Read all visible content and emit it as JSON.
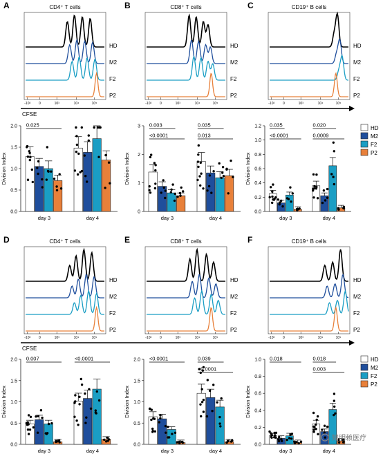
{
  "colors": {
    "HD": "#000000",
    "M2": "#1f4e9c",
    "F2": "#1a9ec4",
    "P2": "#e8803a",
    "hd_bar": "#ffffff",
    "bar_outline": "#222222",
    "line": "#222222"
  },
  "flow_axis": {
    "tick_labels": [
      "-10³",
      "0",
      "10³",
      "10⁴",
      "10⁵"
    ],
    "xlabel": "CFSE",
    "track_labels": [
      "HD",
      "M2",
      "F2",
      "P2"
    ]
  },
  "legend": {
    "entries": [
      "HD",
      "M2",
      "F2",
      "P2"
    ]
  },
  "watermark": "知明赖医疗",
  "chart_data": [
    {
      "id": "A",
      "panel_letter": "A",
      "type": "bar",
      "title": "CD4⁺ T cells",
      "ylabel": "Division Index",
      "yticks": [
        "0.0",
        "0.5",
        "1.0",
        "1.5",
        "2.0"
      ],
      "ylim": [
        0,
        2.0
      ],
      "categories": [
        "day 3",
        "day 4"
      ],
      "series": [
        {
          "name": "HD",
          "values": [
            1.28,
            1.48
          ]
        },
        {
          "name": "M2",
          "values": [
            1.05,
            1.38
          ]
        },
        {
          "name": "F2",
          "values": [
            1.0,
            1.7
          ]
        },
        {
          "name": "P2",
          "values": [
            0.72,
            1.2
          ]
        }
      ],
      "comparisons": [
        {
          "label": "0.025",
          "category": "day 3",
          "from": "HD",
          "to": "P2"
        }
      ]
    },
    {
      "id": "B",
      "panel_letter": "B",
      "type": "bar",
      "title": "CD8⁺ T cells",
      "ylabel": "Division Index",
      "yticks": [
        "0",
        "1",
        "2",
        "3"
      ],
      "ylim": [
        0,
        3
      ],
      "categories": [
        "day 3",
        "day 4"
      ],
      "series": [
        {
          "name": "HD",
          "values": [
            1.38,
            1.75
          ]
        },
        {
          "name": "M2",
          "values": [
            0.88,
            1.35
          ]
        },
        {
          "name": "F2",
          "values": [
            0.65,
            1.18
          ]
        },
        {
          "name": "P2",
          "values": [
            0.55,
            1.25
          ]
        }
      ],
      "comparisons": [
        {
          "label": "<0.0001",
          "category": "day 3",
          "from": "HD",
          "to": "P2"
        },
        {
          "label": "0.003",
          "category": "day 3",
          "from": "HD",
          "to": "F2"
        },
        {
          "label": "0.013",
          "category": "day 4",
          "from": "HD",
          "to": "P2"
        },
        {
          "label": "0.035",
          "category": "day 4",
          "from": "HD",
          "to": "F2"
        }
      ]
    },
    {
      "id": "C",
      "panel_letter": "C",
      "type": "bar",
      "title": "CD19⁺ B cells",
      "ylabel": "Division Index",
      "yticks": [
        "0.0",
        "0.2",
        "0.4",
        "0.6",
        "0.8",
        "1.0",
        "1.2"
      ],
      "ylim": [
        0,
        1.2
      ],
      "categories": [
        "day 3",
        "day 4"
      ],
      "series": [
        {
          "name": "HD",
          "values": [
            0.25,
            0.36
          ]
        },
        {
          "name": "M2",
          "values": [
            0.12,
            0.22
          ]
        },
        {
          "name": "F2",
          "values": [
            0.23,
            0.64
          ]
        },
        {
          "name": "P2",
          "values": [
            0.03,
            0.05
          ]
        }
      ],
      "comparisons": [
        {
          "label": "<0.0001",
          "category": "day 3",
          "from": "HD",
          "to": "P2"
        },
        {
          "label": "0.035",
          "category": "day 3",
          "from": "HD",
          "to": "M2"
        },
        {
          "label": "0.0009",
          "category": "day 4",
          "from": "HD",
          "to": "P2"
        },
        {
          "label": "0.020",
          "category": "day 4",
          "from": "HD",
          "to": "F2"
        }
      ]
    },
    {
      "id": "D",
      "panel_letter": "D",
      "type": "bar",
      "title": "CD4⁺ T cells",
      "ylabel": "Division Index",
      "yticks": [
        "0.0",
        "0.5",
        "1.0",
        "1.5",
        "2.0"
      ],
      "ylim": [
        0,
        2.0
      ],
      "categories": [
        "day 3",
        "day 4"
      ],
      "series": [
        {
          "name": "HD",
          "values": [
            0.48,
            1.02
          ]
        },
        {
          "name": "M2",
          "values": [
            0.58,
            1.08
          ]
        },
        {
          "name": "F2",
          "values": [
            0.48,
            1.3
          ]
        },
        {
          "name": "P2",
          "values": [
            0.06,
            0.12
          ]
        }
      ],
      "comparisons": [
        {
          "label": "0.007",
          "category": "day 3",
          "from": "HD",
          "to": "P2"
        },
        {
          "label": "<0.0001",
          "category": "day 4",
          "from": "HD",
          "to": "P2"
        }
      ]
    },
    {
      "id": "E",
      "panel_letter": "E",
      "type": "bar",
      "title": "CD8⁺ T cells",
      "ylabel": "Division Index",
      "yticks": [
        "0.0",
        "0.5",
        "1.0",
        "1.5",
        "2.0"
      ],
      "ylim": [
        0,
        2.0
      ],
      "categories": [
        "day 3",
        "day 4"
      ],
      "series": [
        {
          "name": "HD",
          "values": [
            0.65,
            1.2
          ]
        },
        {
          "name": "M2",
          "values": [
            0.6,
            1.1
          ]
        },
        {
          "name": "F2",
          "values": [
            0.35,
            0.88
          ]
        },
        {
          "name": "P2",
          "values": [
            0.04,
            0.06
          ]
        }
      ],
      "comparisons": [
        {
          "label": "<0.0001",
          "category": "day 3",
          "from": "HD",
          "to": "P2"
        },
        {
          "label": "<0.0001",
          "category": "day 4",
          "from": "HD",
          "to": "P2"
        },
        {
          "label": "0.039",
          "category": "day 4",
          "from": "HD",
          "to": "F2"
        }
      ]
    },
    {
      "id": "F",
      "panel_letter": "F",
      "type": "bar",
      "title": "CD19⁺ B cells",
      "ylabel": "Division Index",
      "yticks": [
        "0.0",
        "0.2",
        "0.4",
        "0.6",
        "0.8",
        "1.0"
      ],
      "ylim": [
        0,
        1.0
      ],
      "categories": [
        "day 3",
        "day 4"
      ],
      "series": [
        {
          "name": "HD",
          "values": [
            0.1,
            0.24
          ]
        },
        {
          "name": "M2",
          "values": [
            0.07,
            0.15
          ]
        },
        {
          "name": "F2",
          "values": [
            0.1,
            0.41
          ]
        },
        {
          "name": "P2",
          "values": [
            0.02,
            0.04
          ]
        }
      ],
      "comparisons": [
        {
          "label": "0.018",
          "category": "day 3",
          "from": "HD",
          "to": "P2"
        },
        {
          "label": "0.003",
          "category": "day 4",
          "from": "HD",
          "to": "P2"
        },
        {
          "label": "0.018",
          "category": "day 4",
          "from": "HD",
          "to": "F2"
        }
      ]
    }
  ]
}
